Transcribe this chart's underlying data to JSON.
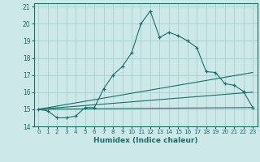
{
  "title": "",
  "xlabel": "Humidex (Indice chaleur)",
  "background_color": "#cce8e8",
  "line_color": "#1a6e68",
  "grid_color": "#aacfcf",
  "xlim": [
    -0.5,
    23.5
  ],
  "ylim": [
    14,
    21.2
  ],
  "yticks": [
    14,
    15,
    16,
    17,
    18,
    19,
    20,
    21
  ],
  "xticks": [
    0,
    1,
    2,
    3,
    4,
    5,
    6,
    7,
    8,
    9,
    10,
    11,
    12,
    13,
    14,
    15,
    16,
    17,
    18,
    19,
    20,
    21,
    22,
    23
  ],
  "main_series": {
    "x": [
      0,
      1,
      2,
      3,
      4,
      5,
      6,
      7,
      8,
      9,
      10,
      11,
      12,
      13,
      14,
      15,
      16,
      17,
      18,
      19,
      20,
      21,
      22,
      23
    ],
    "y": [
      15.0,
      14.9,
      14.5,
      14.5,
      14.6,
      15.1,
      15.1,
      16.2,
      17.0,
      17.5,
      18.3,
      20.0,
      20.75,
      19.2,
      19.5,
      19.3,
      19.0,
      18.6,
      17.2,
      17.15,
      16.5,
      16.4,
      16.05,
      15.1
    ]
  },
  "flat_lines": [
    {
      "x": [
        0,
        23
      ],
      "y": [
        15.0,
        15.1
      ]
    },
    {
      "x": [
        0,
        23
      ],
      "y": [
        15.0,
        16.0
      ]
    },
    {
      "x": [
        0,
        23
      ],
      "y": [
        15.0,
        17.15
      ]
    }
  ]
}
